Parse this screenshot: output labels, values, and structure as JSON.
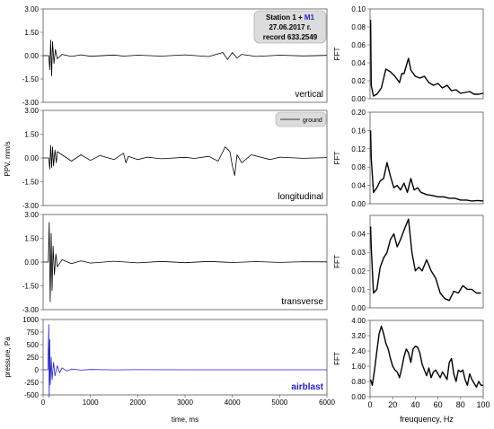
{
  "station_box": {
    "line1_prefix": "Station 1 + ",
    "line1_highlight": "M1",
    "line2": "27.06.2017 г.",
    "line3": "record 633.2549"
  },
  "legend": {
    "label": "ground"
  },
  "colors": {
    "ground": "#000000",
    "airblast": "#2222cc",
    "grid": "#d8d8d8",
    "legend_box": "#dcdcdc"
  },
  "left_axes": {
    "x_ticks": [
      "0",
      "1000",
      "2000",
      "3000",
      "4000",
      "5000",
      "6000"
    ],
    "x_label": "time, ms",
    "y_label_ppv": "PPV, mm/s",
    "y_label_pressure": "pressure, Pa"
  },
  "right_axes": {
    "x_ticks": [
      "0",
      "20",
      "40",
      "60",
      "80",
      "100"
    ],
    "x_label": "freuquency, Hz",
    "y_label": "FFT"
  },
  "chart_data": [
    {
      "type": "line",
      "name": "vertical",
      "label": "vertical",
      "xlim": [
        0,
        6000
      ],
      "ylim": [
        -3,
        3
      ],
      "yticks": [
        "3.00",
        "1.50",
        "0.00",
        "-1.50",
        "-3.00"
      ],
      "x": [
        0,
        120,
        140,
        160,
        180,
        200,
        230,
        260,
        300,
        400,
        600,
        800,
        1000,
        1500,
        1700,
        2000,
        2500,
        3000,
        3500,
        3800,
        3900,
        4000,
        4100,
        4200,
        4500,
        5000,
        5500,
        6000
      ],
      "y": [
        0,
        0,
        -0.9,
        1.0,
        -1.3,
        0.9,
        -0.5,
        0.4,
        -0.2,
        0.08,
        -0.05,
        0.05,
        -0.04,
        0.04,
        -0.03,
        0.03,
        -0.03,
        0.05,
        -0.06,
        0.2,
        -0.25,
        0.2,
        -0.15,
        0.08,
        -0.05,
        0.03,
        -0.02,
        0.02
      ]
    },
    {
      "type": "line",
      "name": "longitudinal",
      "label": "longitudinal",
      "xlim": [
        0,
        6000
      ],
      "ylim": [
        -3,
        3
      ],
      "yticks": [
        "3.00",
        "1.50",
        "0.00",
        "-1.50",
        "-3.00"
      ],
      "x": [
        0,
        120,
        140,
        160,
        180,
        200,
        220,
        250,
        280,
        300,
        400,
        600,
        800,
        1000,
        1200,
        1500,
        1700,
        1750,
        1800,
        2000,
        2200,
        2500,
        3000,
        3200,
        3500,
        3700,
        3850,
        3950,
        4000,
        4050,
        4100,
        4200,
        4400,
        4800,
        5000,
        5500,
        6000
      ],
      "y": [
        0,
        0,
        -0.7,
        0.8,
        -0.6,
        0.7,
        -0.5,
        0.5,
        -0.3,
        0.4,
        0.2,
        -0.2,
        0.2,
        -0.15,
        0.15,
        -0.1,
        0.3,
        -0.3,
        0.1,
        -0.1,
        0.05,
        -0.05,
        0.04,
        -0.03,
        0.1,
        -0.2,
        0.7,
        0.4,
        -0.5,
        -1.1,
        0.2,
        -0.3,
        0.2,
        -0.1,
        0.05,
        -0.02,
        0.02
      ]
    },
    {
      "type": "line",
      "name": "transverse",
      "label": "transverse",
      "xlim": [
        0,
        6000
      ],
      "ylim": [
        -3,
        3
      ],
      "yticks": [
        "3.00",
        "1.50",
        "0.00",
        "-1.50",
        "-3.00"
      ],
      "x": [
        0,
        110,
        130,
        150,
        170,
        190,
        210,
        240,
        270,
        300,
        400,
        600,
        800,
        1000,
        1500,
        2000,
        2500,
        3000,
        3500,
        4000,
        4500,
        5000,
        5500,
        6000
      ],
      "y": [
        0,
        0,
        2.5,
        -2.5,
        1.8,
        -1.8,
        1.0,
        -0.8,
        0.5,
        -0.3,
        0.15,
        -0.1,
        0.08,
        -0.06,
        0.05,
        -0.05,
        0.04,
        -0.04,
        0.04,
        -0.03,
        0.03,
        -0.02,
        0.02,
        0.01
      ]
    },
    {
      "type": "line",
      "name": "airblast",
      "label": "airblast",
      "xlim": [
        0,
        6000
      ],
      "ylim": [
        -500,
        1000
      ],
      "yticks": [
        "1000",
        "750",
        "500",
        "250",
        "0",
        "-250",
        "-500"
      ],
      "x": [
        0,
        100,
        120,
        130,
        140,
        150,
        170,
        190,
        220,
        250,
        300,
        350,
        400,
        500,
        600,
        800,
        1000,
        1500,
        2000,
        3000,
        4000,
        5000,
        6000
      ],
      "y": [
        0,
        0,
        900,
        -550,
        600,
        -300,
        250,
        -200,
        150,
        -120,
        80,
        -60,
        40,
        -25,
        15,
        -8,
        5,
        -2,
        1,
        0,
        0,
        0,
        0
      ]
    },
    {
      "type": "line",
      "name": "FFT vertical",
      "xlabel": "",
      "ylabel": "FFT",
      "xlim": [
        0,
        100
      ],
      "ylim": [
        0,
        0.1
      ],
      "yticks": [
        "0.10",
        "0.08",
        "0.06",
        "0.04",
        "0.02",
        "0.00"
      ],
      "x": [
        0.5,
        1,
        3,
        6,
        10,
        14,
        18,
        22,
        26,
        28,
        30,
        34,
        36,
        40,
        44,
        48,
        52,
        56,
        60,
        64,
        68,
        72,
        76,
        80,
        84,
        88,
        92,
        96,
        100
      ],
      "y": [
        0.088,
        0.015,
        0.003,
        0.005,
        0.012,
        0.033,
        0.03,
        0.025,
        0.018,
        0.028,
        0.028,
        0.045,
        0.032,
        0.025,
        0.023,
        0.025,
        0.018,
        0.015,
        0.017,
        0.012,
        0.015,
        0.009,
        0.01,
        0.006,
        0.007,
        0.008,
        0.005,
        0.005,
        0.006
      ]
    },
    {
      "type": "line",
      "name": "FFT longitudinal",
      "xlabel": "",
      "ylabel": "FFT",
      "xlim": [
        0,
        100
      ],
      "ylim": [
        0,
        0.2
      ],
      "yticks": [
        "0.20",
        "0.16",
        "0.12",
        "0.08",
        "0.04",
        "0.00"
      ],
      "x": [
        0.5,
        1,
        3,
        6,
        9,
        12,
        15,
        18,
        21,
        24,
        27,
        30,
        33,
        36,
        39,
        42,
        45,
        50,
        55,
        60,
        65,
        70,
        75,
        80,
        85,
        90,
        95,
        100
      ],
      "y": [
        0.16,
        0.1,
        0.025,
        0.035,
        0.05,
        0.055,
        0.09,
        0.06,
        0.035,
        0.04,
        0.03,
        0.045,
        0.025,
        0.055,
        0.03,
        0.035,
        0.025,
        0.02,
        0.018,
        0.015,
        0.015,
        0.012,
        0.012,
        0.008,
        0.008,
        0.006,
        0.007,
        0.006
      ]
    },
    {
      "type": "line",
      "name": "FFT transverse",
      "xlabel": "",
      "ylabel": "FFT",
      "xlim": [
        0,
        100
      ],
      "ylim": [
        0,
        0.05
      ],
      "yticks": [
        "0.04",
        "0.03",
        "0.02",
        "0.01",
        "0.00"
      ],
      "x": [
        0.5,
        1,
        3,
        6,
        9,
        12,
        15,
        18,
        21,
        24,
        27,
        30,
        34,
        37,
        40,
        43,
        46,
        50,
        54,
        58,
        62,
        66,
        70,
        74,
        78,
        82,
        86,
        90,
        94,
        98
      ],
      "y": [
        0.044,
        0.033,
        0.008,
        0.01,
        0.022,
        0.027,
        0.03,
        0.037,
        0.04,
        0.033,
        0.037,
        0.042,
        0.048,
        0.03,
        0.02,
        0.022,
        0.02,
        0.026,
        0.02,
        0.016,
        0.008,
        0.005,
        0.004,
        0.009,
        0.008,
        0.012,
        0.01,
        0.01,
        0.008,
        0.008
      ]
    },
    {
      "type": "line",
      "name": "FFT airblast",
      "xlabel": "freuquency, Hz",
      "ylabel": "FFT",
      "xlim": [
        0,
        100
      ],
      "ylim": [
        0,
        4
      ],
      "yticks": [
        "4.00",
        "3.20",
        "2.40",
        "1.60",
        "0.80",
        "0.00"
      ],
      "x": [
        0.5,
        2,
        4,
        6,
        8,
        10,
        12,
        14,
        16,
        18,
        20,
        22,
        24,
        26,
        28,
        30,
        32,
        34,
        36,
        38,
        40,
        42,
        44,
        46,
        48,
        50,
        52,
        54,
        56,
        58,
        60,
        62,
        64,
        66,
        68,
        70,
        72,
        74,
        76,
        78,
        80,
        82,
        84,
        86,
        88,
        90,
        92,
        94,
        96,
        98,
        100
      ],
      "y": [
        0.9,
        0.6,
        1.4,
        2.4,
        3.3,
        3.7,
        3.3,
        2.8,
        2.5,
        2.0,
        1.6,
        1.4,
        1.3,
        1.0,
        1.5,
        2.1,
        2.5,
        2.3,
        1.8,
        2.5,
        2.65,
        2.6,
        2.3,
        1.7,
        1.4,
        1.1,
        1.5,
        1.0,
        1.3,
        1.4,
        1.2,
        1.0,
        1.3,
        1.1,
        0.9,
        1.8,
        2.0,
        1.2,
        0.8,
        1.4,
        1.3,
        1.4,
        0.9,
        0.6,
        1.2,
        0.9,
        0.7,
        0.5,
        0.8,
        0.6,
        0.6
      ]
    }
  ]
}
